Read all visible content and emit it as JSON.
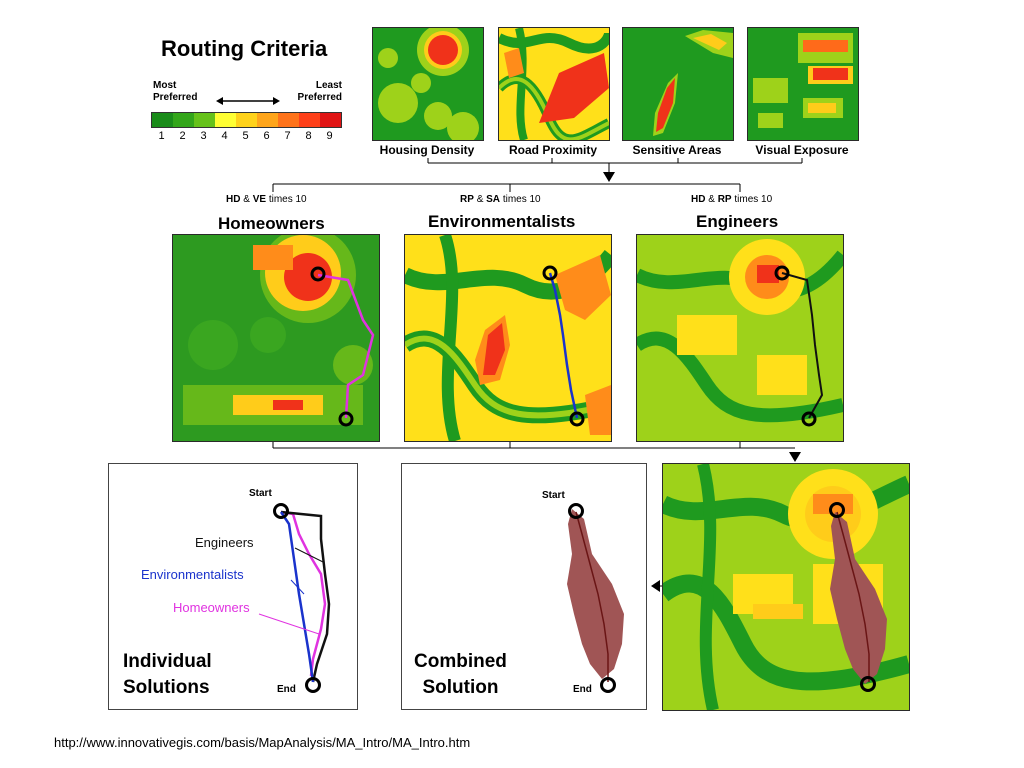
{
  "title": "Routing Criteria",
  "legend": {
    "most_label": "Most\nPreferred",
    "least_label": "Least\nPreferred",
    "numbers": [
      "1",
      "2",
      "3",
      "4",
      "5",
      "6",
      "7",
      "8",
      "9"
    ],
    "colors": [
      "#1a8c1a",
      "#33a61a",
      "#66c21a",
      "#ffff33",
      "#ffd21a",
      "#ffa51a",
      "#ff731a",
      "#ff4019",
      "#e01414"
    ]
  },
  "criteria": [
    "Housing Density",
    "Road Proximity",
    "Sensitive Areas",
    "Visual Exposure"
  ],
  "stakeholders": [
    {
      "codes_a": "HD",
      "amp": "&",
      "codes_b": "VE",
      "times": "times 10",
      "name": "Homeowners"
    },
    {
      "codes_a": "RP",
      "amp": "&",
      "codes_b": "SA",
      "times": "times 10",
      "name": "Environmentalists"
    },
    {
      "codes_a": "HD",
      "amp": "&",
      "codes_b": "RP",
      "times": "times 10",
      "name": "Engineers"
    }
  ],
  "individual": {
    "start": "Start",
    "end": "End",
    "legend": [
      "Engineers",
      "Environmentalists",
      "Homeowners"
    ],
    "title_line1": "Individual",
    "title_line2": "Solutions"
  },
  "combined": {
    "start": "Start",
    "end": "End",
    "title_line1": "Combined",
    "title_line2": "Solution"
  },
  "colors": {
    "homeowners": "#e033e0",
    "environmentalists": "#1a33cc",
    "engineers": "#111111",
    "combined": "#a05555"
  },
  "source_url": "http://www.innovativegis.com/basis/MapAnalysis/MA_Intro/MA_Intro.htm"
}
